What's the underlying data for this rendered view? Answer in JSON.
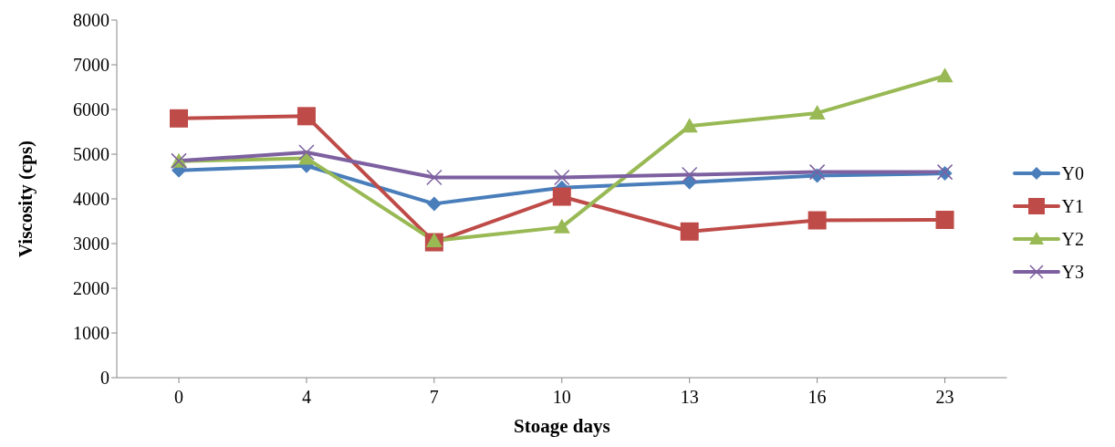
{
  "chart_data": {
    "type": "line",
    "xlabel": "Stoage days",
    "ylabel": "Viscosity (cps)",
    "categories": [
      "0",
      "4",
      "7",
      "10",
      "13",
      "16",
      "23"
    ],
    "series": [
      {
        "name": "Y0",
        "color": "#4a7ebb",
        "marker": "diamond",
        "values": [
          4640,
          4740,
          3890,
          4250,
          4370,
          4520,
          4570
        ]
      },
      {
        "name": "Y1",
        "color": "#be4b48",
        "marker": "square",
        "values": [
          5800,
          5850,
          3030,
          4050,
          3270,
          3520,
          3530
        ]
      },
      {
        "name": "Y2",
        "color": "#98b954",
        "marker": "triangle",
        "values": [
          4840,
          4910,
          3060,
          3370,
          5630,
          5920,
          6750
        ]
      },
      {
        "name": "Y3",
        "color": "#7d60a0",
        "marker": "cross",
        "values": [
          4850,
          5040,
          4480,
          4480,
          4540,
          4600,
          4600
        ]
      }
    ],
    "ylim": [
      0,
      8000
    ],
    "yticks": [
      0,
      1000,
      2000,
      3000,
      4000,
      5000,
      6000,
      7000,
      8000
    ],
    "grid": false,
    "legend": "right",
    "line_style": "solid"
  }
}
